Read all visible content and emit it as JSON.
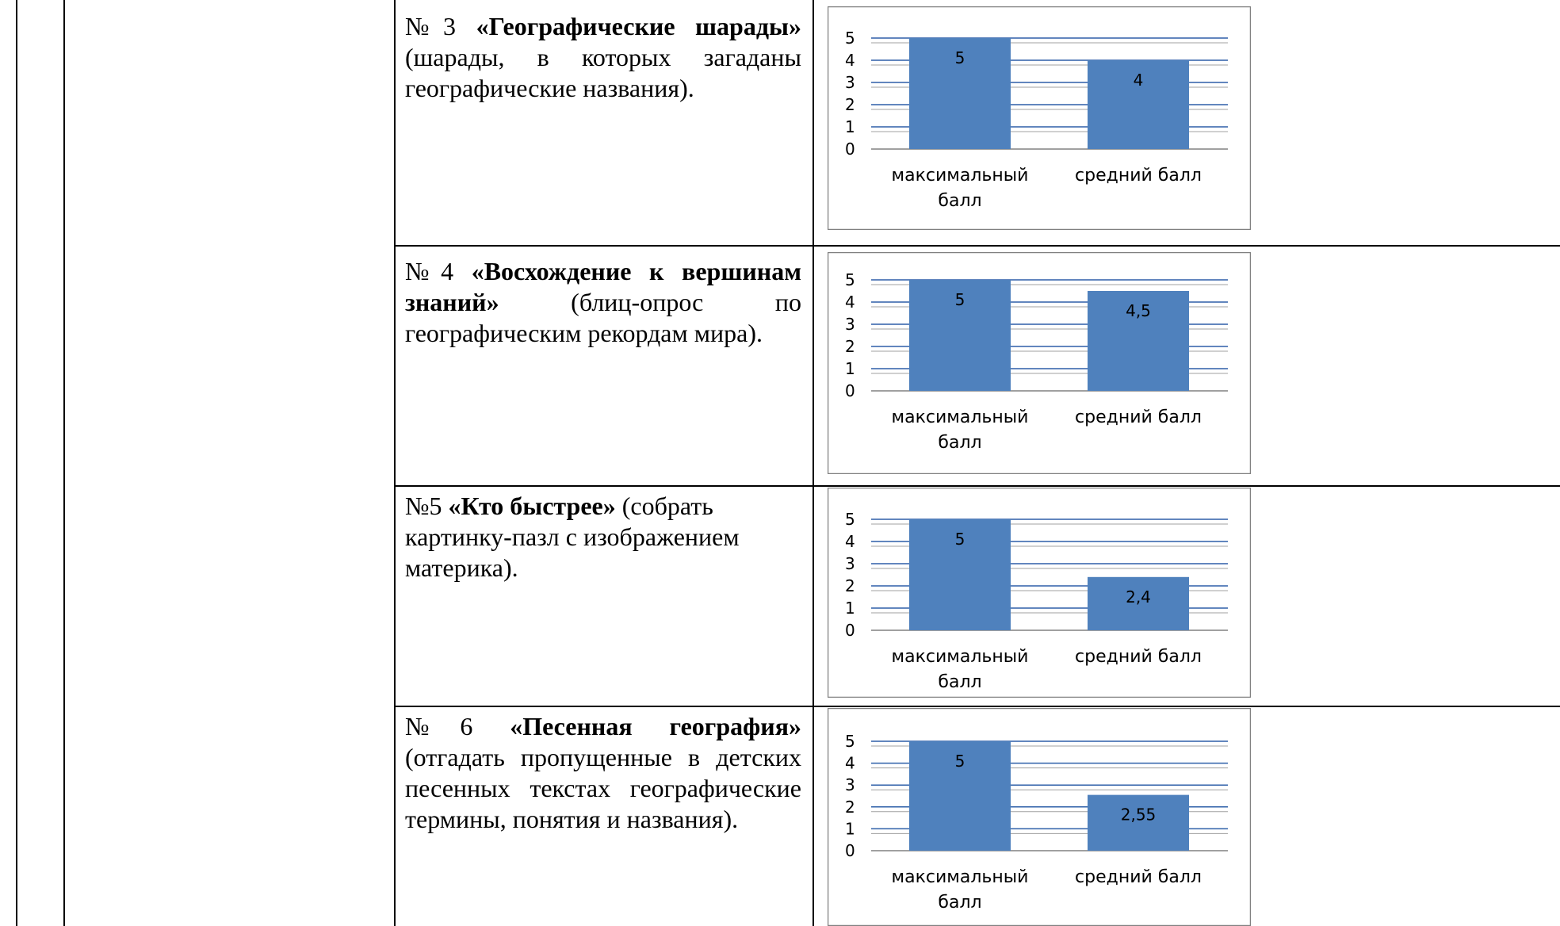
{
  "rows": [
    {
      "number": "№3",
      "title": "«Географические шарады»",
      "description": "(шарады, в которых загаданы географические названия)."
    },
    {
      "number": "№4",
      "title": "«Восхождение к вершинам знаний»",
      "description": "(блиц-опрос по географическим рекордам мира)."
    },
    {
      "number": "№5",
      "title": "«Кто быстрее»",
      "description": "(собрать картинку-пазл с изображением материка)."
    },
    {
      "number": "№6",
      "title": "«Песенная география»",
      "description": "(отгадать пропущенные в детских песенных текстах географические термины, понятия и названия)."
    }
  ],
  "chart_data": [
    {
      "type": "bar",
      "categories": [
        "максимальный балл",
        "средний балл"
      ],
      "values": [
        5,
        4
      ],
      "value_labels": [
        "5",
        "4"
      ],
      "ylim": [
        0,
        5
      ],
      "yticks": [
        "0",
        "1",
        "2",
        "3",
        "4",
        "5"
      ],
      "bar_color": "#4f81bd"
    },
    {
      "type": "bar",
      "categories": [
        "максимальный балл",
        "средний балл"
      ],
      "values": [
        5,
        4.5
      ],
      "value_labels": [
        "5",
        "4,5"
      ],
      "ylim": [
        0,
        5
      ],
      "yticks": [
        "0",
        "1",
        "2",
        "3",
        "4",
        "5"
      ],
      "bar_color": "#4f81bd"
    },
    {
      "type": "bar",
      "categories": [
        "максимальный балл",
        "средний балл"
      ],
      "values": [
        5,
        2.4
      ],
      "value_labels": [
        "5",
        "2,4"
      ],
      "ylim": [
        0,
        5
      ],
      "yticks": [
        "0",
        "1",
        "2",
        "3",
        "4",
        "5"
      ],
      "bar_color": "#4f81bd"
    },
    {
      "type": "bar",
      "categories": [
        "максимальный балл",
        "средний балл"
      ],
      "values": [
        5,
        2.55
      ],
      "value_labels": [
        "5",
        "2,55"
      ],
      "ylim": [
        0,
        5
      ],
      "yticks": [
        "0",
        "1",
        "2",
        "3",
        "4",
        "5"
      ],
      "bar_color": "#4f81bd"
    }
  ]
}
